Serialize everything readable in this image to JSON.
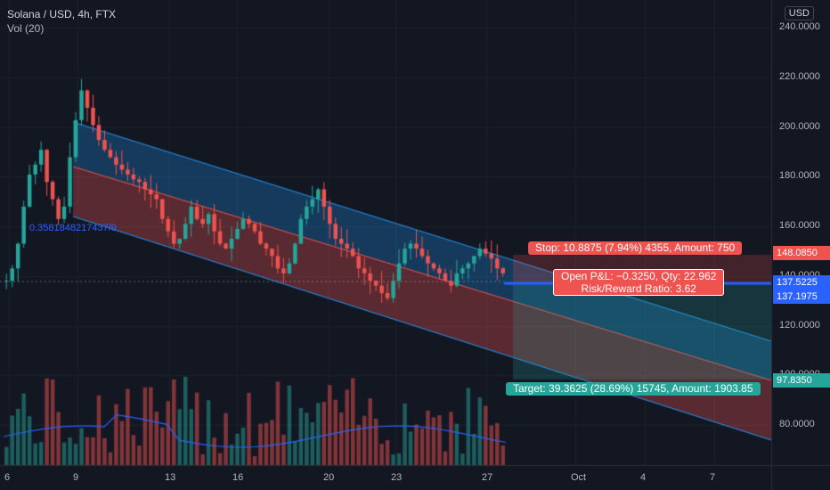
{
  "legend": {
    "symbol": "Solana / USD, 4h, FTX",
    "volume": "Vol (20)"
  },
  "currency": "USD",
  "price_axis": [
    "240.0000",
    "220.0000",
    "200.0000",
    "180.0000",
    "160.0000",
    "140.0000",
    "120.0000",
    "100.0000",
    "80.0000"
  ],
  "time_axis": [
    "6",
    "9",
    "13",
    "16",
    "20",
    "23",
    "27",
    "Oct",
    "4",
    "7"
  ],
  "price_tags": {
    "stop": "148.0850",
    "last": "137.5225",
    "entry": "137.1975",
    "target": "97.8350"
  },
  "labels": {
    "stop": "Stop: 10.8875 (7.94%) 4355, Amount: 750",
    "open_pl": "Open P&L: −0.3250, Qty: 22.962",
    "rr": "Risk/Reward Ratio: 3.62",
    "target": "Target: 39.3625 (28.69%) 15745, Amount: 1903.85",
    "fib": "0.3581848217437/9"
  },
  "colors": {
    "bg": "#131722",
    "up": "#26a69a",
    "down": "#ef5350",
    "channel": "#2196f3",
    "grid": "#1e222d"
  },
  "chart_data": {
    "type": "candlestick",
    "title": "Solana / USD, 4h, FTX",
    "ylim": [
      70,
      245
    ],
    "x_ticks": [
      "6",
      "9",
      "13",
      "16",
      "20",
      "23",
      "27",
      "Oct",
      "4",
      "7"
    ],
    "series": [
      {
        "name": "price",
        "values": [
          135,
          140,
          150,
          165,
          178,
          182,
          188,
          175,
          168,
          160,
          165,
          185,
          200,
          212,
          205,
          198,
          192,
          188,
          185,
          182,
          180,
          178,
          176,
          175,
          172,
          170,
          168,
          160,
          155,
          150,
          152,
          158,
          165,
          160,
          158,
          162,
          155,
          150,
          148,
          152,
          156,
          160,
          158,
          155,
          150,
          148,
          145,
          140,
          138,
          142,
          150,
          160,
          165,
          168,
          172,
          165,
          158,
          152,
          150,
          148,
          145,
          140,
          138,
          135,
          133,
          130,
          128,
          135,
          142,
          148,
          150,
          148,
          145,
          142,
          140,
          138,
          135,
          133,
          138,
          140,
          142,
          145,
          148,
          146,
          144,
          140,
          138
        ]
      }
    ]
  }
}
